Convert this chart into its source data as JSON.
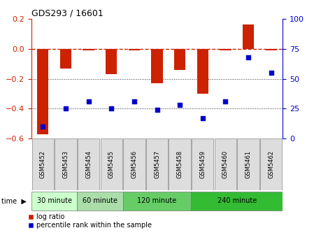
{
  "title": "GDS293 / 16601",
  "samples": [
    "GSM5452",
    "GSM5453",
    "GSM5454",
    "GSM5455",
    "GSM5456",
    "GSM5457",
    "GSM5458",
    "GSM5459",
    "GSM5460",
    "GSM5461",
    "GSM5462"
  ],
  "log_ratio": [
    -0.57,
    -0.13,
    -0.01,
    -0.17,
    -0.01,
    -0.23,
    -0.14,
    -0.3,
    -0.01,
    0.16,
    -0.01
  ],
  "percentile_rank": [
    10,
    25,
    31,
    25,
    31,
    24,
    28,
    17,
    31,
    68,
    55
  ],
  "time_groups": [
    {
      "label": "30 minute",
      "start": 0,
      "end": 1,
      "color": "#ccffcc"
    },
    {
      "label": "60 minute",
      "start": 2,
      "end": 3,
      "color": "#aaddaa"
    },
    {
      "label": "120 minute",
      "start": 4,
      "end": 6,
      "color": "#66cc66"
    },
    {
      "label": "240 minute",
      "start": 7,
      "end": 10,
      "color": "#33bb33"
    }
  ],
  "bar_color": "#cc2200",
  "dot_color": "#0000cc",
  "left_ylim": [
    -0.6,
    0.2
  ],
  "right_ylim": [
    0,
    100
  ],
  "left_yticks": [
    -0.6,
    -0.4,
    -0.2,
    0.0,
    0.2
  ],
  "right_yticks": [
    0,
    25,
    50,
    75,
    100
  ],
  "hline_color": "#cc2200",
  "dotted_color": "#333333",
  "bg_color": "#ffffff",
  "bar_width": 0.5,
  "time_group_colors": [
    "#ccffcc",
    "#aaddaa",
    "#66cc66",
    "#33bb33"
  ]
}
